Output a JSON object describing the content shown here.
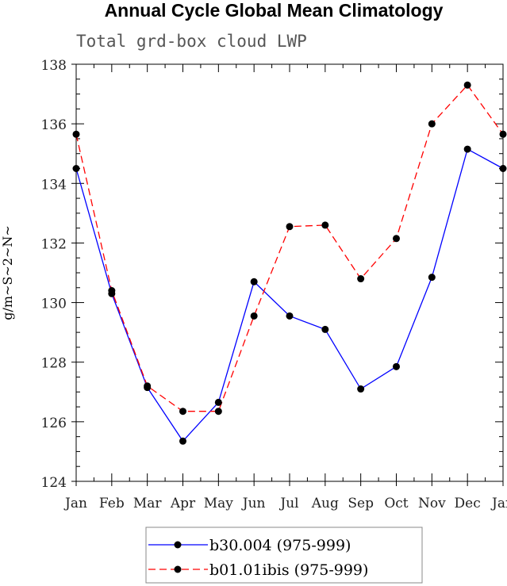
{
  "chart_data": {
    "type": "line",
    "title": "Annual Cycle Global Mean Climatology",
    "subtitle": "Total grd-box cloud LWP",
    "ylabel": "g/m~S~2~N~",
    "xlabel": "",
    "categories": [
      "Jan",
      "Feb",
      "Mar",
      "Apr",
      "May",
      "Jun",
      "Jul",
      "Aug",
      "Sep",
      "Oct",
      "Nov",
      "Dec",
      "Jan"
    ],
    "ylim": [
      124,
      138
    ],
    "yticks": [
      124,
      126,
      128,
      130,
      132,
      134,
      136,
      138
    ],
    "series": [
      {
        "name": "b30.004 (975-999)",
        "color": "#0000ff",
        "dash": "solid",
        "values": [
          134.5,
          130.3,
          127.15,
          125.35,
          126.65,
          130.7,
          129.55,
          129.1,
          127.1,
          127.85,
          130.85,
          135.15,
          134.5
        ]
      },
      {
        "name": "b01.01ibis (975-999)",
        "color": "#ff0000",
        "dash": "dashed",
        "values": [
          135.65,
          130.4,
          127.2,
          126.35,
          126.35,
          129.55,
          132.55,
          132.6,
          130.8,
          132.15,
          136.0,
          137.3,
          135.65
        ]
      }
    ],
    "grid": false,
    "legend_position": "bottom"
  }
}
